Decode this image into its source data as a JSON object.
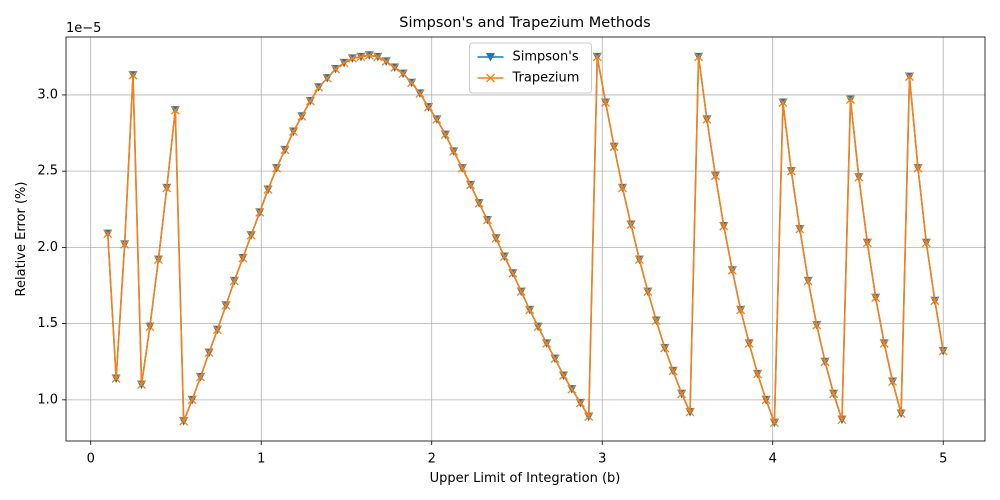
{
  "chart_data": {
    "type": "line",
    "title": "Simpson's and Trapezium Methods",
    "xlabel": "Upper Limit of Integration (b)",
    "ylabel": "Relative Error (%)",
    "y_offset_label": "1e−5",
    "x": [
      0.1,
      0.149,
      0.199,
      0.248,
      0.298,
      0.347,
      0.397,
      0.446,
      0.496,
      0.545,
      0.595,
      0.644,
      0.694,
      0.743,
      0.793,
      0.842,
      0.892,
      0.941,
      0.991,
      1.04,
      1.09,
      1.139,
      1.189,
      1.238,
      1.288,
      1.337,
      1.387,
      1.436,
      1.486,
      1.535,
      1.585,
      1.634,
      1.684,
      1.733,
      1.783,
      1.832,
      1.882,
      1.931,
      1.981,
      2.03,
      2.08,
      2.129,
      2.179,
      2.228,
      2.278,
      2.327,
      2.377,
      2.426,
      2.476,
      2.525,
      2.575,
      2.624,
      2.674,
      2.723,
      2.773,
      2.822,
      2.872,
      2.921,
      2.971,
      3.02,
      3.07,
      3.119,
      3.169,
      3.218,
      3.268,
      3.317,
      3.367,
      3.416,
      3.466,
      3.515,
      3.565,
      3.614,
      3.664,
      3.713,
      3.763,
      3.812,
      3.862,
      3.911,
      3.961,
      4.01,
      4.06,
      4.109,
      4.159,
      4.208,
      4.258,
      4.307,
      4.357,
      4.406,
      4.456,
      4.505,
      4.555,
      4.604,
      4.654,
      4.703,
      4.753,
      4.802,
      4.852,
      4.901,
      4.951,
      5.0
    ],
    "series": [
      {
        "name": "Simpson's",
        "color": "#1f77b4",
        "marker": "triangle-down",
        "values": [
          2.09,
          1.14,
          2.02,
          3.13,
          1.1,
          1.48,
          1.92,
          2.39,
          2.9,
          0.86,
          1.0,
          1.15,
          1.31,
          1.46,
          1.62,
          1.78,
          1.93,
          2.08,
          2.23,
          2.38,
          2.52,
          2.64,
          2.76,
          2.86,
          2.96,
          3.05,
          3.11,
          3.17,
          3.21,
          3.24,
          3.25,
          3.26,
          3.25,
          3.22,
          3.18,
          3.14,
          3.08,
          3.01,
          2.92,
          2.84,
          2.74,
          2.63,
          2.52,
          2.41,
          2.29,
          2.18,
          2.06,
          1.94,
          1.83,
          1.71,
          1.59,
          1.48,
          1.37,
          1.27,
          1.16,
          1.07,
          0.98,
          0.89,
          3.25,
          2.95,
          2.66,
          2.39,
          2.15,
          1.92,
          1.71,
          1.52,
          1.34,
          1.19,
          1.04,
          0.92,
          3.25,
          2.84,
          2.47,
          2.14,
          1.85,
          1.59,
          1.37,
          1.17,
          1.0,
          0.85,
          2.95,
          2.5,
          2.12,
          1.78,
          1.49,
          1.25,
          1.04,
          0.87,
          2.97,
          2.46,
          2.03,
          1.67,
          1.37,
          1.12,
          0.91,
          3.12,
          2.52,
          2.03,
          1.65,
          1.32
        ]
      },
      {
        "name": "Trapezium",
        "color": "#ff7f0e",
        "marker": "x",
        "values": [
          2.09,
          1.14,
          2.02,
          3.13,
          1.1,
          1.48,
          1.92,
          2.39,
          2.9,
          0.86,
          1.0,
          1.15,
          1.31,
          1.46,
          1.62,
          1.78,
          1.93,
          2.08,
          2.23,
          2.38,
          2.52,
          2.64,
          2.76,
          2.86,
          2.96,
          3.05,
          3.11,
          3.17,
          3.21,
          3.24,
          3.25,
          3.26,
          3.25,
          3.22,
          3.18,
          3.14,
          3.08,
          3.01,
          2.92,
          2.84,
          2.74,
          2.63,
          2.52,
          2.41,
          2.29,
          2.18,
          2.06,
          1.94,
          1.83,
          1.71,
          1.59,
          1.48,
          1.37,
          1.27,
          1.16,
          1.07,
          0.98,
          0.89,
          3.25,
          2.95,
          2.66,
          2.39,
          2.15,
          1.92,
          1.71,
          1.52,
          1.34,
          1.19,
          1.04,
          0.92,
          3.25,
          2.84,
          2.47,
          2.14,
          1.85,
          1.59,
          1.37,
          1.17,
          1.0,
          0.85,
          2.95,
          2.5,
          2.12,
          1.78,
          1.49,
          1.25,
          1.04,
          0.87,
          2.97,
          2.46,
          2.03,
          1.67,
          1.37,
          1.12,
          0.91,
          3.12,
          2.52,
          2.03,
          1.65,
          1.32
        ]
      }
    ],
    "xlim": [
      -0.145,
      5.245
    ],
    "ylim": [
      0.73,
      3.38
    ],
    "xticks": [
      0,
      1,
      2,
      3,
      4,
      5
    ],
    "yticks": [
      {
        "value": 1.0,
        "label": "1.0"
      },
      {
        "value": 1.5,
        "label": "1.5"
      },
      {
        "value": 2.0,
        "label": "2.0"
      },
      {
        "value": 2.5,
        "label": "2.5"
      },
      {
        "value": 3.0,
        "label": "3.0"
      }
    ],
    "grid": true,
    "legend": "upper center"
  }
}
